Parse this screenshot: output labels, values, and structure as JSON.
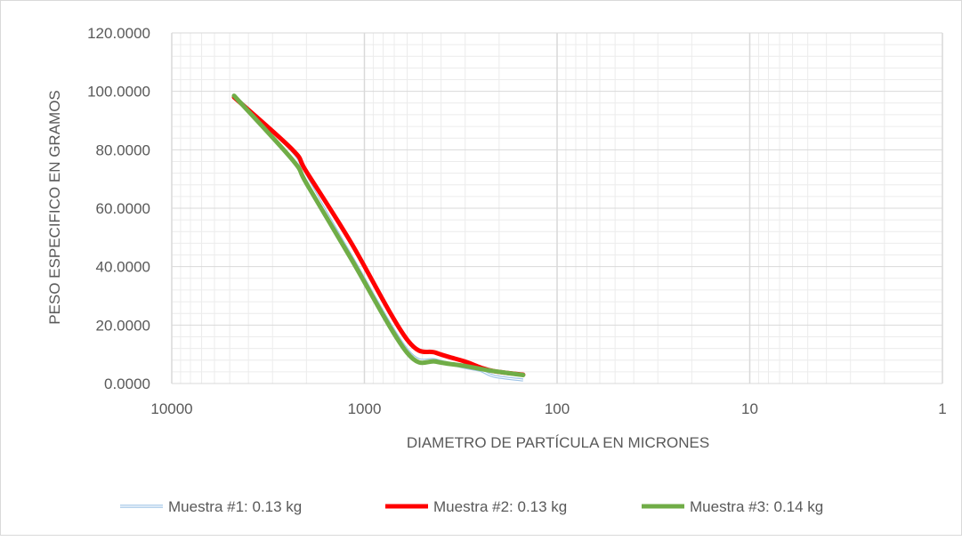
{
  "chart_data": {
    "type": "line",
    "title": "",
    "xlabel": "DIAMETRO DE PARTÍCULA EN MICRONES",
    "ylabel": "PESO ESPECIFICO EN GRAMOS",
    "x_scale": "log",
    "x_reversed": true,
    "xlim": [
      10000,
      1
    ],
    "ylim": [
      0,
      120
    ],
    "x_ticks": [
      10000,
      1000,
      100,
      10,
      1
    ],
    "x_tick_labels": [
      "10000",
      "1000",
      "100",
      "10",
      "1"
    ],
    "y_ticks": [
      0,
      20,
      40,
      60,
      80,
      100,
      120
    ],
    "y_tick_labels": [
      "0.0000",
      "20.0000",
      "40.0000",
      "60.0000",
      "80.0000",
      "100.0000",
      "120.0000"
    ],
    "grid": true,
    "legend_position": "bottom",
    "series": [
      {
        "name": "Muestra #1: 0.13 kg",
        "color": "#9dc3e6",
        "style": "double-thin",
        "x": [
          4750,
          2360,
          2000,
          1180,
          600,
          425,
          300,
          250,
          212,
          150
        ],
        "y": [
          98.5,
          79.5,
          70.5,
          44.0,
          11.5,
          8.0,
          5.5,
          4.5,
          2.5,
          1.2
        ]
      },
      {
        "name": "Muestra #2: 0.13 kg",
        "color": "#ff0000",
        "style": "thick",
        "x": [
          4750,
          2360,
          2000,
          1180,
          600,
          425,
          300,
          250,
          212,
          150
        ],
        "y": [
          98.0,
          80.0,
          72.5,
          48.5,
          15.0,
          10.5,
          7.5,
          5.5,
          4.2,
          3.0
        ]
      },
      {
        "name": "Muestra #3: 0.14 kg",
        "color": "#70ad47",
        "style": "thick",
        "x": [
          4750,
          2360,
          2000,
          1180,
          600,
          425,
          300,
          250,
          212,
          150
        ],
        "y": [
          98.5,
          76.5,
          68.5,
          43.0,
          10.5,
          7.5,
          6.0,
          5.0,
          4.2,
          2.9
        ]
      }
    ]
  }
}
